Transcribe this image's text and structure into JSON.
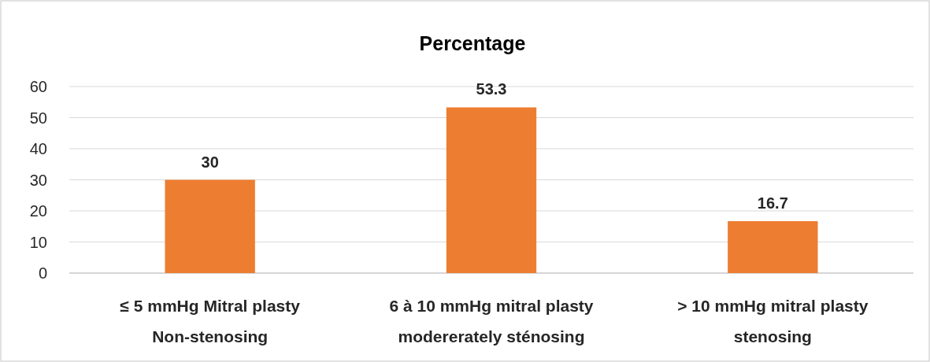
{
  "chart_data": {
    "type": "bar",
    "title": "Percentage",
    "categories": [
      "≤ 5 mmHg Mitral plasty\nNon-stenosing",
      "6 à 10 mmHg mitral plasty\nmodererately sténosing",
      "> 10 mmHg mitral plasty\nstenosing"
    ],
    "values": [
      30,
      53.3,
      16.7
    ],
    "color": "#ed7d31",
    "ylim": [
      0,
      60
    ],
    "yticks": [
      0,
      10,
      20,
      30,
      40,
      50,
      60
    ],
    "grid": "y",
    "data_labels": true
  }
}
